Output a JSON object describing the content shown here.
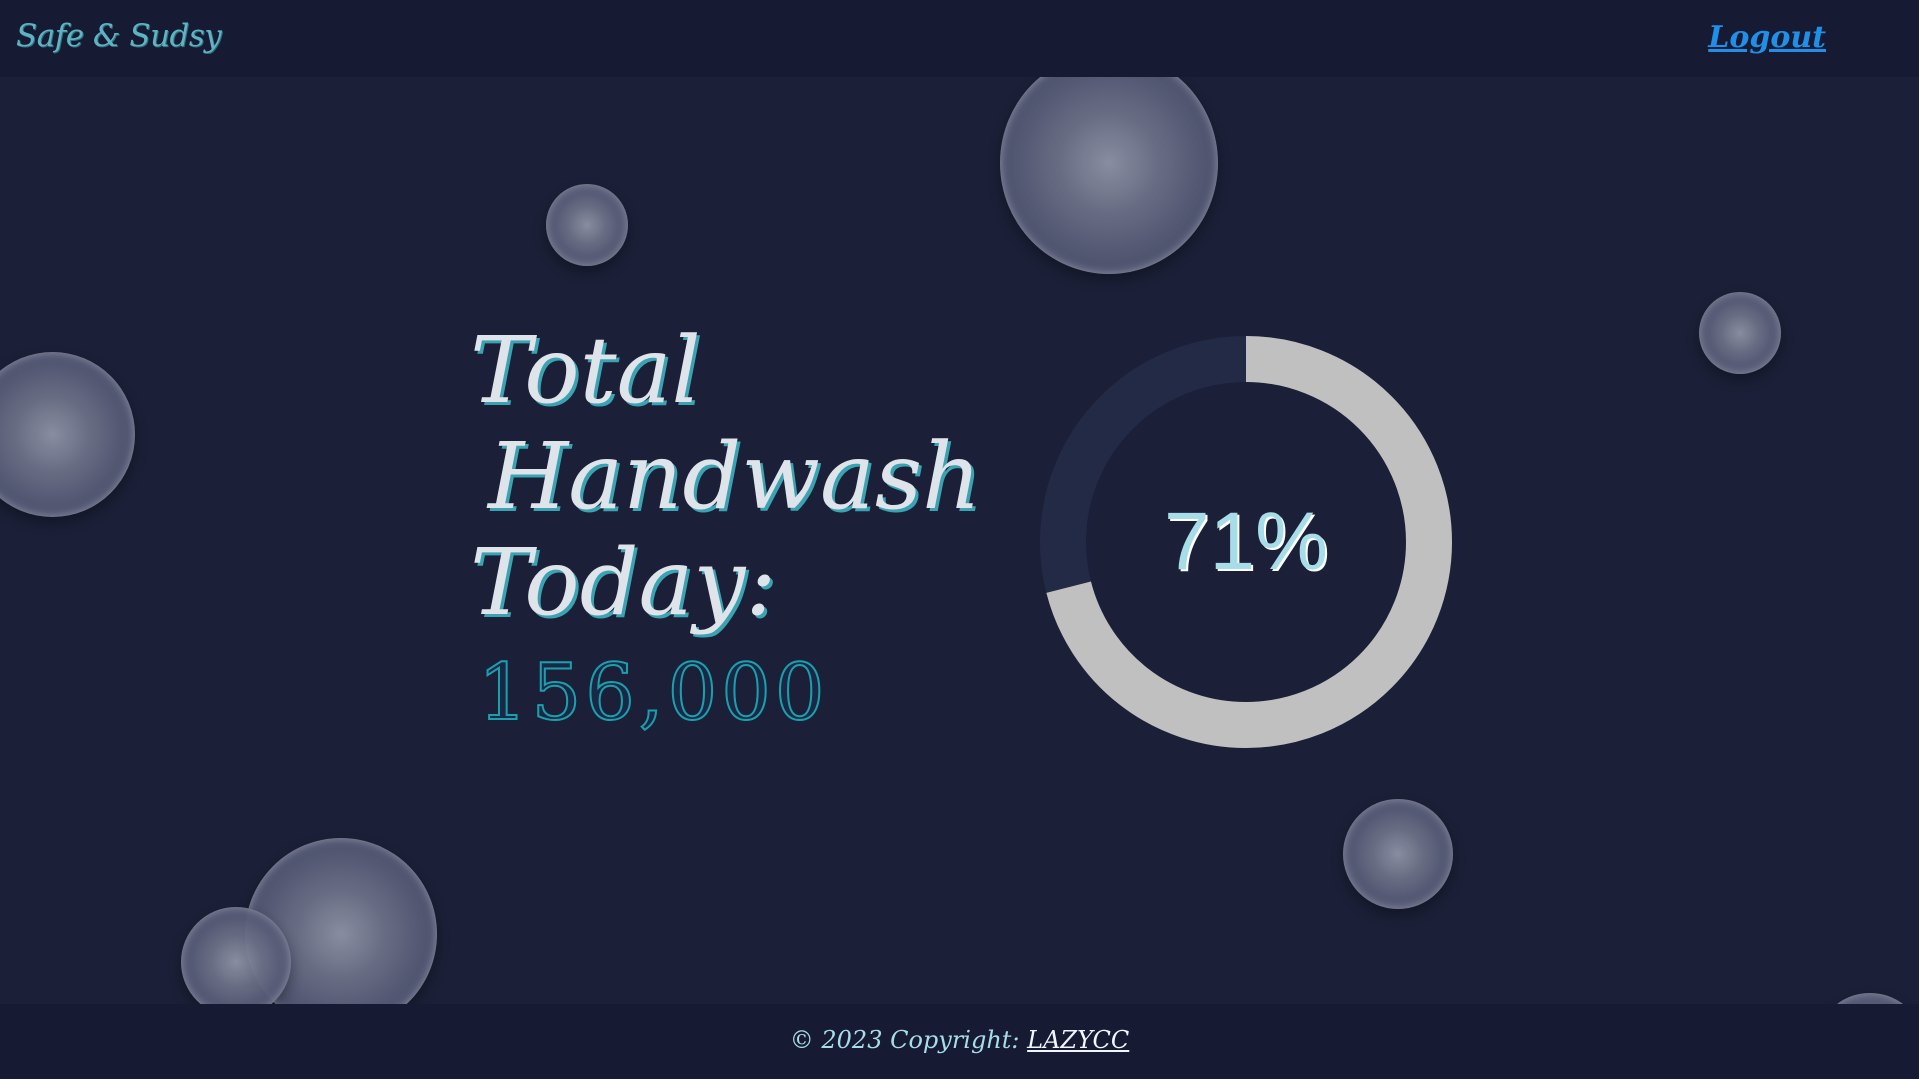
{
  "header": {
    "brand": "Safe & Sudsy",
    "logout_label": "Logout",
    "colors": {
      "background": "#161b33",
      "brand": "#5fb3c2",
      "logout": "#1f8fe8"
    }
  },
  "main": {
    "headline_line1": "Total",
    "headline_line2": "Handwash",
    "headline_line3": "Today:",
    "total_count": "156,000",
    "progress": {
      "label": "71%",
      "percent": 71,
      "colors": {
        "track": "#232a45",
        "fill": "#c0c0c0"
      }
    },
    "background_color": "#1b2038",
    "decoration_icon": "bubble-icon"
  },
  "footer": {
    "copyright_prefix": "© 2023 Copyright: ",
    "copyright_link": "LAZYCC"
  }
}
